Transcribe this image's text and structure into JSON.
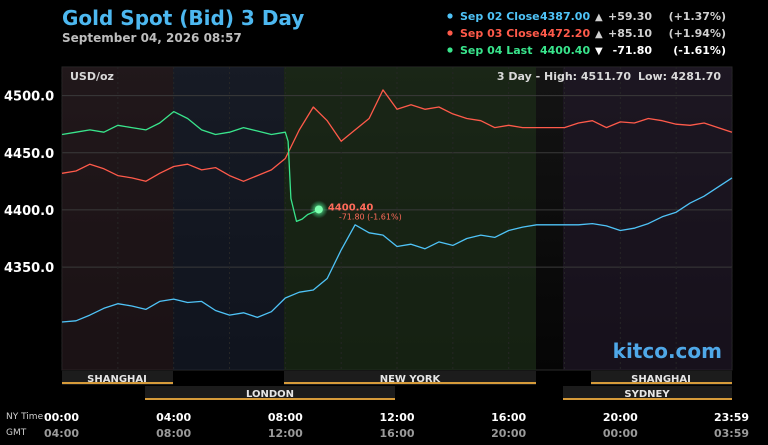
{
  "header": {
    "title": "Gold Spot (Bid) 3 Day",
    "timestamp": "September 04, 2026 08:57"
  },
  "legend": [
    {
      "label": "Sep 02 Close",
      "price": "4387.00",
      "arrow": "▲",
      "change": "+59.30",
      "pct": "(+1.37%)",
      "color": "#4fc3f7"
    },
    {
      "label": "Sep 03 Close",
      "price": "4472.20",
      "arrow": "▲",
      "change": "+85.10",
      "pct": "(+1.94%)",
      "color": "#ff5a4a"
    },
    {
      "label": "Sep 04 Last",
      "price": "4400.40",
      "arrow": "▼",
      "change": "-71.80",
      "pct": "(-1.61%)",
      "color": "#39e58c"
    }
  ],
  "plot": {
    "unit": "USD/oz",
    "range_label": "3 Day - High: 4511.70",
    "low_label": "Low: 4281.70",
    "watermark": "kitco.com",
    "last_price": "4400.40",
    "last_change": "-71.80 (-1.61%)"
  },
  "sessions": {
    "row1": [
      "SHANGHAI",
      "NEW YORK",
      "SHANGHAI"
    ],
    "row2": [
      "LONDON",
      "SYDNEY"
    ]
  },
  "time_axis": {
    "ny_label": "NY Time",
    "gmt_label": "GMT",
    "ny_ticks": [
      "00:00",
      "04:00",
      "08:00",
      "12:00",
      "16:00",
      "20:00",
      "23:59"
    ],
    "gmt_ticks": [
      "04:00",
      "08:00",
      "12:00",
      "16:00",
      "20:00",
      "00:00",
      "03:59"
    ]
  },
  "chart_data": {
    "type": "line",
    "title": "Gold Spot (Bid) 3 Day",
    "ylabel": "USD/oz",
    "ylim": [
      4260,
      4525
    ],
    "xlim": [
      0,
      24
    ],
    "y_ticks": [
      "4350.0",
      "4400.0",
      "4450.0",
      "4500.0"
    ],
    "grid": true,
    "series": [
      {
        "name": "Sep 02 Close",
        "color": "#4fc3f7",
        "x": [
          0,
          0.5,
          1,
          1.5,
          2,
          2.5,
          3,
          3.5,
          4,
          4.5,
          5,
          5.5,
          6,
          6.5,
          7,
          7.5,
          8,
          8.5,
          9,
          9.5,
          10,
          10.5,
          11,
          11.5,
          12,
          12.5,
          13,
          13.5,
          14,
          14.5,
          15,
          15.5,
          16,
          16.5,
          17,
          17.5,
          18,
          18.5,
          19,
          19.5,
          20,
          20.5,
          21,
          21.5,
          22,
          22.5,
          23,
          23.5,
          24
        ],
        "values": [
          4302,
          4303,
          4308,
          4314,
          4318,
          4316,
          4313,
          4320,
          4322,
          4319,
          4320,
          4312,
          4308,
          4310,
          4306,
          4311,
          4323,
          4328,
          4330,
          4340,
          4365,
          4387,
          4380,
          4378,
          4368,
          4370,
          4366,
          4372,
          4369,
          4375,
          4378,
          4376,
          4382,
          4385,
          4387,
          4387,
          4387,
          4387,
          4388,
          4386,
          4382,
          4384,
          4388,
          4394,
          4398,
          4406,
          4412,
          4420,
          4428
        ]
      },
      {
        "name": "Sep 03 Close",
        "color": "#ff5a4a",
        "x": [
          0,
          0.5,
          1,
          1.5,
          2,
          2.5,
          3,
          3.5,
          4,
          4.5,
          5,
          5.5,
          6,
          6.5,
          7,
          7.5,
          8,
          8.5,
          9,
          9.5,
          10,
          10.5,
          11,
          11.5,
          12,
          12.5,
          13,
          13.5,
          14,
          14.5,
          15,
          15.5,
          16,
          16.5,
          17,
          17.5,
          18,
          18.5,
          19,
          19.5,
          20,
          20.5,
          21,
          21.5,
          22,
          22.5,
          23,
          23.5,
          24
        ],
        "values": [
          4432,
          4434,
          4440,
          4436,
          4430,
          4428,
          4425,
          4432,
          4438,
          4440,
          4435,
          4437,
          4430,
          4425,
          4430,
          4435,
          4445,
          4470,
          4490,
          4478,
          4460,
          4470,
          4480,
          4505,
          4488,
          4492,
          4488,
          4490,
          4484,
          4480,
          4478,
          4472,
          4474,
          4472,
          4472,
          4472,
          4472,
          4476,
          4478,
          4472,
          4477,
          4476,
          4480,
          4478,
          4475,
          4474,
          4476,
          4472,
          4468
        ]
      },
      {
        "name": "Sep 04 Last",
        "color": "#39e58c",
        "x": [
          0,
          0.5,
          1,
          1.5,
          2,
          2.5,
          3,
          3.5,
          4,
          4.5,
          5,
          5.5,
          6,
          6.5,
          7,
          7.5,
          8,
          8.1,
          8.2,
          8.4,
          8.6,
          8.8,
          9,
          9.2
        ],
        "values": [
          4466,
          4468,
          4470,
          4468,
          4474,
          4472,
          4470,
          4476,
          4486,
          4480,
          4470,
          4466,
          4468,
          4472,
          4469,
          4466,
          4468,
          4460,
          4410,
          4390,
          4392,
          4396,
          4398,
          4400.4
        ]
      }
    ]
  }
}
